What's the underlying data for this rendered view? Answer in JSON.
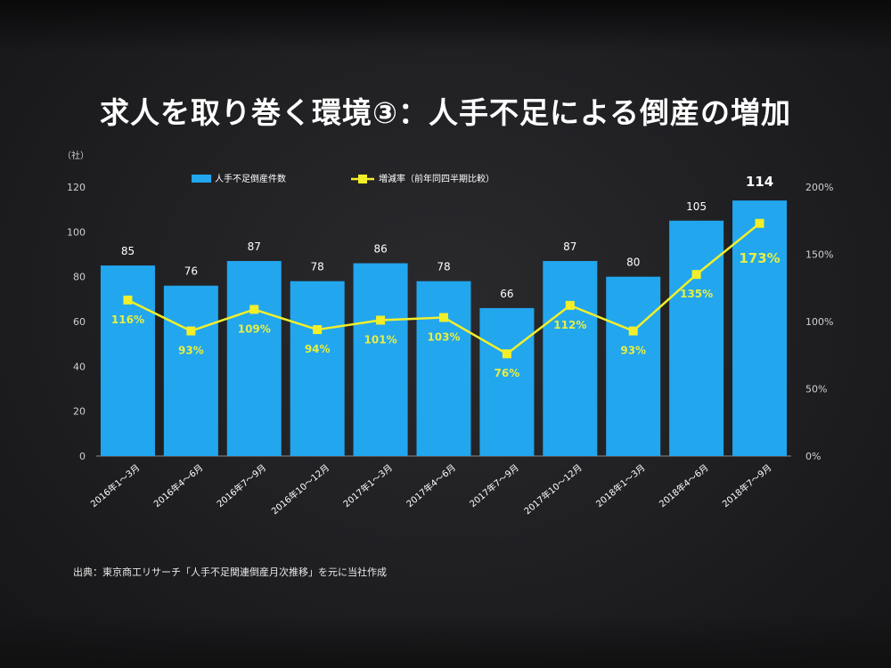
{
  "slide": {
    "title": "求人を取り巻く環境③：人手不足による倒産の増加",
    "source": "出典：東京商工リサーチ「人手不足関連倒産月次推移」を元に当社作成"
  },
  "colors": {
    "bar": "#22a6ee",
    "line": "#f2ef2a",
    "rate_label": "#e6ef44",
    "text": "#ffffff",
    "axis": "#d0d0d0"
  },
  "chart_data": {
    "type": "bar+line",
    "y_unit_label": "（社）",
    "categories": [
      "2016年1～3月",
      "2016年4～6月",
      "2016年7～9月",
      "2016年10～12月",
      "2017年1～3月",
      "2017年4～6月",
      "2017年7～9月",
      "2017年10～12月",
      "2018年1～3月",
      "2018年4～6月",
      "2018年7～9月"
    ],
    "series": [
      {
        "name": "人手不足倒産件数",
        "kind": "bar",
        "axis": "left",
        "values": [
          85,
          76,
          87,
          78,
          86,
          78,
          66,
          87,
          80,
          105,
          114
        ]
      },
      {
        "name": "増減率（前年同四半期比較）",
        "kind": "line",
        "axis": "right",
        "values": [
          116,
          93,
          109,
          94,
          101,
          103,
          76,
          112,
          93,
          135,
          173
        ]
      }
    ],
    "bar_labels": [
      "85",
      "76",
      "87",
      "78",
      "86",
      "78",
      "66",
      "87",
      "80",
      "105",
      "114"
    ],
    "rate_labels": [
      "116%",
      "93%",
      "109%",
      "94%",
      "101%",
      "103%",
      "76%",
      "112%",
      "93%",
      "135%",
      "173%"
    ],
    "y_left": {
      "min": 0,
      "max": 120,
      "ticks": [
        0,
        20,
        40,
        60,
        80,
        100,
        120
      ]
    },
    "y_right": {
      "min": 0,
      "max": 200,
      "ticks": [
        0,
        50,
        100,
        150,
        200
      ],
      "tick_labels": [
        "0%",
        "50%",
        "100%",
        "150%",
        "200%"
      ]
    },
    "legend_position": "top",
    "grid": false
  }
}
